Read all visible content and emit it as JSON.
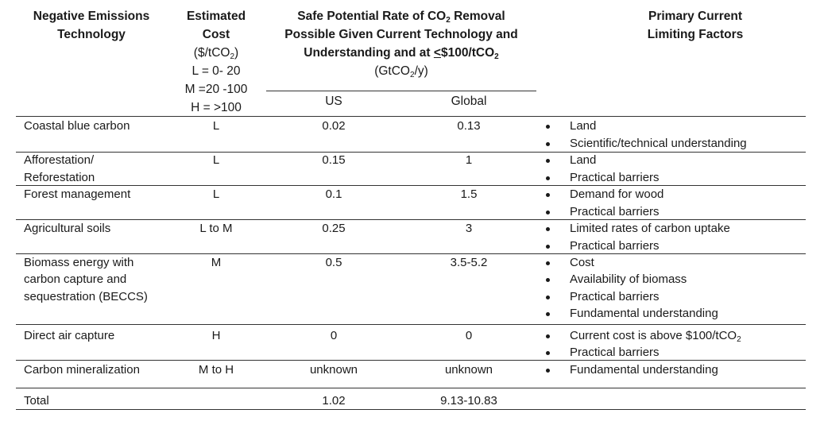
{
  "header": {
    "technology": [
      "Negative Emissions",
      "Technology"
    ],
    "cost_title": [
      "Estimated",
      "Cost"
    ],
    "cost_unit_pre": "($/tCO",
    "cost_unit_sub": "2",
    "cost_unit_post": ")",
    "cost_legend": [
      "L = 0- 20",
      "M =20 -100",
      "H = >100"
    ],
    "rate_line1_pre": "Safe Potential Rate of CO",
    "rate_line1_sub": "2",
    "rate_line1_post": " Removal",
    "rate_line2": "Possible Given Current Technology and",
    "rate_line3_pre": "Understanding and at ",
    "rate_line3_underlined": "<",
    "rate_line3_post": "$100/tCO",
    "rate_line3_sub": "2",
    "rate_unit_pre": "(GtCO",
    "rate_unit_sub": "2",
    "rate_unit_post": "/y)",
    "us": "US",
    "global": "Global",
    "factors": [
      "Primary Current",
      "Limiting Factors"
    ]
  },
  "rows": [
    {
      "tech": [
        "Coastal blue carbon"
      ],
      "cost": "L",
      "us": "0.02",
      "global": "0.13",
      "factors": [
        "Land",
        "Scientific/technical understanding"
      ]
    },
    {
      "tech": [
        "Afforestation/",
        "Reforestation"
      ],
      "cost": "L",
      "us": "0.15",
      "global": "1",
      "factors": [
        "Land",
        "Practical barriers"
      ]
    },
    {
      "tech": [
        "Forest management"
      ],
      "cost": "L",
      "us": "0.1",
      "global": "1.5",
      "factors": [
        "Demand for wood",
        "Practical barriers"
      ]
    },
    {
      "tech": [
        "Agricultural soils"
      ],
      "cost": "L to M",
      "us": "0.25",
      "global": "3",
      "factors": [
        "Limited rates of carbon uptake",
        "Practical barriers"
      ]
    },
    {
      "tech": [
        "Biomass energy with",
        "carbon capture and",
        "sequestration (BECCS)"
      ],
      "cost": "M",
      "us": "0.5",
      "global": "3.5-5.2",
      "factors": [
        "Cost",
        "Availability of biomass",
        "Practical barriers",
        "Fundamental understanding"
      ]
    },
    {
      "tech": [
        "Direct air capture"
      ],
      "cost": "H",
      "us": "0",
      "global": "0",
      "factors": [
        "Current cost is above $100/tCO",
        "Practical barriers"
      ],
      "factor_sub": "2"
    },
    {
      "tech": [
        "Carbon mineralization"
      ],
      "cost": "M to H",
      "us": "unknown",
      "global": "unknown",
      "factors": [
        "Fundamental understanding"
      ]
    }
  ],
  "total": {
    "label": "Total",
    "us": "1.02",
    "global": "9.13-10.83"
  }
}
